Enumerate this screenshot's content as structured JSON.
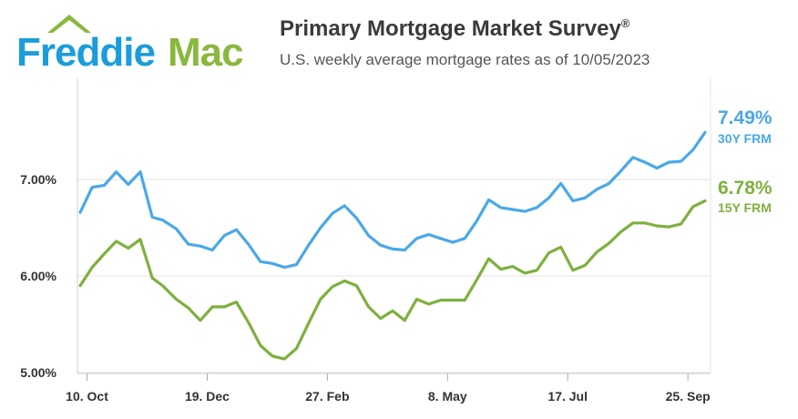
{
  "brand": {
    "name_part1": "Freddie",
    "name_part2": "Mac",
    "color_blue": "#1b9ddb",
    "color_green": "#8ab83f"
  },
  "header": {
    "title": "Primary Mortgage Market Survey",
    "title_mark": "®",
    "subtitle": "U.S. weekly average mortgage rates as of 10/05/2023"
  },
  "chart_data": {
    "type": "line",
    "x": [
      "2022-10-06",
      "2022-10-13",
      "2022-10-20",
      "2022-10-27",
      "2022-11-03",
      "2022-11-10",
      "2022-11-17",
      "2022-11-23",
      "2022-12-01",
      "2022-12-08",
      "2022-12-15",
      "2022-12-22",
      "2022-12-29",
      "2023-01-05",
      "2023-01-12",
      "2023-01-19",
      "2023-01-26",
      "2023-02-02",
      "2023-02-09",
      "2023-02-16",
      "2023-02-23",
      "2023-03-02",
      "2023-03-09",
      "2023-03-16",
      "2023-03-23",
      "2023-03-30",
      "2023-04-06",
      "2023-04-13",
      "2023-04-20",
      "2023-04-27",
      "2023-05-04",
      "2023-05-11",
      "2023-05-18",
      "2023-05-25",
      "2023-06-01",
      "2023-06-08",
      "2023-06-15",
      "2023-06-22",
      "2023-06-29",
      "2023-07-06",
      "2023-07-13",
      "2023-07-20",
      "2023-07-27",
      "2023-08-03",
      "2023-08-10",
      "2023-08-17",
      "2023-08-24",
      "2023-08-31",
      "2023-09-07",
      "2023-09-14",
      "2023-09-21",
      "2023-09-28",
      "2023-10-05"
    ],
    "series": [
      {
        "name": "30Y FRM",
        "color": "#4aa8e8",
        "values": [
          6.66,
          6.92,
          6.94,
          7.08,
          6.95,
          7.08,
          6.61,
          6.58,
          6.49,
          6.33,
          6.31,
          6.27,
          6.42,
          6.48,
          6.33,
          6.15,
          6.13,
          6.09,
          6.12,
          6.32,
          6.5,
          6.65,
          6.73,
          6.6,
          6.42,
          6.32,
          6.28,
          6.27,
          6.39,
          6.43,
          6.39,
          6.35,
          6.39,
          6.57,
          6.79,
          6.71,
          6.69,
          6.67,
          6.71,
          6.81,
          6.96,
          6.78,
          6.81,
          6.9,
          6.96,
          7.09,
          7.23,
          7.18,
          7.12,
          7.18,
          7.19,
          7.31,
          7.49
        ]
      },
      {
        "name": "15Y FRM",
        "color": "#7eb03e",
        "values": [
          5.9,
          6.09,
          6.23,
          6.36,
          6.29,
          6.38,
          5.98,
          5.9,
          5.76,
          5.67,
          5.54,
          5.68,
          5.68,
          5.73,
          5.52,
          5.28,
          5.17,
          5.14,
          5.25,
          5.51,
          5.76,
          5.89,
          5.95,
          5.9,
          5.68,
          5.56,
          5.64,
          5.54,
          5.76,
          5.71,
          5.75,
          5.75,
          5.75,
          5.96,
          6.18,
          6.07,
          6.1,
          6.03,
          6.06,
          6.24,
          6.3,
          6.06,
          6.11,
          6.25,
          6.34,
          6.46,
          6.55,
          6.55,
          6.52,
          6.51,
          6.54,
          6.72,
          6.78
        ]
      }
    ],
    "end_labels": [
      {
        "value": "7.49%",
        "series": "30Y FRM"
      },
      {
        "value": "6.78%",
        "series": "15Y FRM"
      }
    ],
    "x_ticks": [
      {
        "date": "2022-10-10",
        "label": "10. Oct"
      },
      {
        "date": "2022-12-19",
        "label": "19. Dec"
      },
      {
        "date": "2023-02-27",
        "label": "27. Feb"
      },
      {
        "date": "2023-05-08",
        "label": "8. May"
      },
      {
        "date": "2023-07-17",
        "label": "17. Jul"
      },
      {
        "date": "2023-09-25",
        "label": "25. Sep"
      }
    ],
    "y_ticks": [
      {
        "value": 5,
        "label": "5.00%"
      },
      {
        "value": 6,
        "label": "6.00%"
      },
      {
        "value": 7,
        "label": "7.00%"
      }
    ],
    "ylim": [
      4.99,
      8.05
    ],
    "grid": true,
    "title": "",
    "xlabel": "",
    "ylabel": ""
  }
}
